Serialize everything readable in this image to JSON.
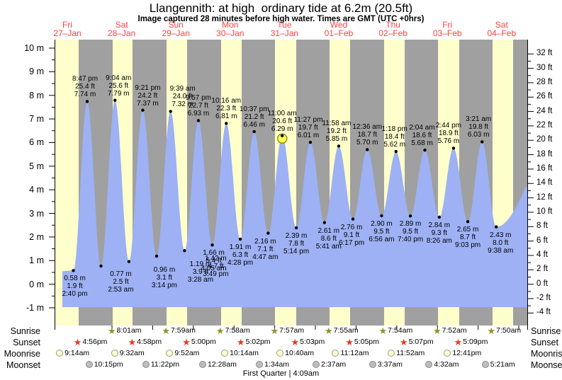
{
  "title": "Llangennith: at high  ordinary tide at 6.2m (20.5ft)",
  "subtitle": "Image captured 28 minutes before high water. Times are GMT (UTC +0hrs)",
  "days": [
    {
      "name": "Fri",
      "date": "27–Jan"
    },
    {
      "name": "Sat",
      "date": "28–Jan"
    },
    {
      "name": "Sun",
      "date": "29–Jan"
    },
    {
      "name": "Mon",
      "date": "30–Jan"
    },
    {
      "name": "Tue",
      "date": "31–Jan"
    },
    {
      "name": "Wed",
      "date": "01–Feb"
    },
    {
      "name": "Thu",
      "date": "02–Feb"
    },
    {
      "name": "Fri",
      "date": "03–Feb"
    },
    {
      "name": "Sat",
      "date": "04–Feb"
    }
  ],
  "chart_data": {
    "type": "area",
    "x_unit": "hours_from_Fri_27_Jan_00:00_GMT",
    "y_unit": "metres",
    "ylim_m": [
      -1,
      10
    ],
    "ylim_ft": [
      -4,
      32
    ],
    "yticks_m": [
      {
        "v": 10,
        "label": "10 m"
      },
      {
        "v": 9,
        "label": "9 m"
      },
      {
        "v": 8,
        "label": "8 m"
      },
      {
        "v": 7,
        "label": "7 m"
      },
      {
        "v": 6,
        "label": "6 m"
      },
      {
        "v": 5,
        "label": "5 m"
      },
      {
        "v": 4,
        "label": "4 m"
      },
      {
        "v": 3,
        "label": "3 m"
      },
      {
        "v": 2,
        "label": "2 m"
      },
      {
        "v": 1,
        "label": "1 m"
      },
      {
        "v": 0,
        "label": "0 m"
      },
      {
        "v": -1,
        "label": "-1 m"
      }
    ],
    "yticks_ft": [
      {
        "v": 32,
        "label": "32 ft"
      },
      {
        "v": 30,
        "label": "30 ft"
      },
      {
        "v": 28,
        "label": "28 ft"
      },
      {
        "v": 26,
        "label": "26 ft"
      },
      {
        "v": 24,
        "label": "24 ft"
      },
      {
        "v": 22,
        "label": "22 ft"
      },
      {
        "v": 20,
        "label": "20 ft"
      },
      {
        "v": 18,
        "label": "18 ft"
      },
      {
        "v": 16,
        "label": "16 ft"
      },
      {
        "v": 14,
        "label": "14 ft"
      },
      {
        "v": 12,
        "label": "12 ft"
      },
      {
        "v": 10,
        "label": "10 ft"
      },
      {
        "v": 8,
        "label": "8 ft"
      },
      {
        "v": 6,
        "label": "6 ft"
      },
      {
        "v": 4,
        "label": "4 ft"
      },
      {
        "v": 2,
        "label": "2 ft"
      },
      {
        "v": 0,
        "label": "0 ft"
      },
      {
        "v": -2,
        "label": "-2 ft"
      },
      {
        "v": -4,
        "label": "-4 ft"
      }
    ],
    "events": [
      {
        "kind": "low",
        "t": 14.67,
        "m": 0.58,
        "label_lines": [
          "0.58 m",
          "1.9 ft",
          "2:40 pm"
        ]
      },
      {
        "kind": "high",
        "t": 20.78,
        "m": 7.74,
        "label_lines": [
          "8:47 pm",
          "25.4 ft",
          "7.74 m"
        ]
      },
      {
        "kind": "low",
        "t": 26.88,
        "m": 0.77,
        "label_lines": [
          "0.77 m",
          "2.5 ft",
          "2:53 am"
        ]
      },
      {
        "kind": "high",
        "t": 33.07,
        "m": 7.79,
        "label_lines": [
          "9:04 am",
          "25.6 ft",
          "7.79 m"
        ]
      },
      {
        "kind": "low",
        "t": 39.23,
        "m": 0.96,
        "label_lines": [
          "0.96 m",
          "3.1 ft",
          "3:14 pm"
        ]
      },
      {
        "kind": "high",
        "t": 45.35,
        "m": 7.37,
        "label_lines": [
          "9:21 pm",
          "24.2 ft",
          "7.37 m"
        ]
      },
      {
        "kind": "low",
        "t": 51.47,
        "m": 1.19,
        "label_lines": [
          "1.19 m",
          "3.9 ft",
          "3:28 am"
        ]
      },
      {
        "kind": "high",
        "t": 57.65,
        "m": 7.32,
        "label_lines": [
          "9:39 am",
          "24.0 ft",
          "7.32 m"
        ]
      },
      {
        "kind": "low",
        "t": 63.82,
        "m": 1.42,
        "label_lines": [
          "1.42 m",
          "4.7 ft",
          "3:49 pm"
        ]
      },
      {
        "kind": "high",
        "t": 69.95,
        "m": 6.93,
        "label_lines": [
          "9:57 pm",
          "22.7 ft",
          "6.93 m"
        ]
      },
      {
        "kind": "low",
        "t": 76.08,
        "m": 1.66,
        "label_lines": [
          "1.66 m",
          "5.4 ft",
          "4:05 am"
        ]
      },
      {
        "kind": "high",
        "t": 82.27,
        "m": 6.81,
        "label_lines": [
          "10:16 am",
          "22.3 ft",
          "6.81 m"
        ]
      },
      {
        "kind": "low",
        "t": 88.47,
        "m": 1.91,
        "label_lines": [
          "1.91 m",
          "6.3 ft",
          "4:28 pm"
        ]
      },
      {
        "kind": "high",
        "t": 94.62,
        "m": 6.46,
        "label_lines": [
          "10:37 pm",
          "21.2 ft",
          "6.46 m"
        ]
      },
      {
        "kind": "low",
        "t": 100.78,
        "m": 2.16,
        "label_lines": [
          "2.16 m",
          "7.1 ft",
          "4:47 am"
        ]
      },
      {
        "kind": "high",
        "t": 107.0,
        "m": 6.29,
        "current": true,
        "label_lines": [
          "11:00 am",
          "20.6 ft",
          "6.29 m"
        ]
      },
      {
        "kind": "low",
        "t": 113.23,
        "m": 2.39,
        "label_lines": [
          "2.39 m",
          "7.8 ft",
          "5:14 pm"
        ]
      },
      {
        "kind": "high",
        "t": 119.45,
        "m": 6.01,
        "label_lines": [
          "11:27 pm",
          "19.7 ft",
          "6.01 m"
        ]
      },
      {
        "kind": "low",
        "t": 125.68,
        "m": 2.61,
        "label_lines": [
          "2.61 m",
          "8.6 ft",
          "5:41 am"
        ]
      },
      {
        "kind": "high",
        "t": 131.97,
        "m": 5.85,
        "label_lines": [
          "11:58 am",
          "19.2 ft",
          "5.85 m"
        ]
      },
      {
        "kind": "low",
        "t": 138.28,
        "m": 2.76,
        "label_lines": [
          "2.76 m",
          "9.1 ft",
          "6:17 pm"
        ]
      },
      {
        "kind": "high",
        "t": 144.6,
        "m": 5.7,
        "label_lines": [
          "12:36 am",
          "18.7 ft",
          "5.70 m"
        ]
      },
      {
        "kind": "low",
        "t": 150.93,
        "m": 2.9,
        "label_lines": [
          "2.90 m",
          "9.5 ft",
          "6:56 am"
        ]
      },
      {
        "kind": "high",
        "t": 157.3,
        "m": 5.62,
        "label_lines": [
          "1:18 pm",
          "18.4 ft",
          "5.62 m"
        ]
      },
      {
        "kind": "low",
        "t": 163.67,
        "m": 2.89,
        "label_lines": [
          "2.89 m",
          "9.5 ft",
          "7:40 pm"
        ]
      },
      {
        "kind": "high",
        "t": 170.07,
        "m": 5.68,
        "label_lines": [
          "2:04 am",
          "18.6 ft",
          "5.68 m"
        ]
      },
      {
        "kind": "low",
        "t": 176.43,
        "m": 2.84,
        "label_lines": [
          "2.84 m",
          "9.3 ft",
          "8:26 am"
        ]
      },
      {
        "kind": "high",
        "t": 182.73,
        "m": 5.76,
        "label_lines": [
          "2:44 pm",
          "18.9 ft",
          "5.76 m"
        ]
      },
      {
        "kind": "low",
        "t": 189.05,
        "m": 2.65,
        "label_lines": [
          "2.65 m",
          "8.7 ft",
          "9:03 pm"
        ]
      },
      {
        "kind": "high",
        "t": 195.35,
        "m": 6.03,
        "label_lines": [
          "3:21 am",
          "19.8 ft",
          "6.03 m"
        ]
      },
      {
        "kind": "low",
        "t": 201.63,
        "m": 2.43,
        "label_lines": [
          "2.43 m",
          "8.0 ft",
          "9:38 am"
        ]
      }
    ],
    "current_time_marker_on": "11:00 am"
  },
  "astro": {
    "rows": [
      {
        "id": "sunrise",
        "label": "Sunrise",
        "icon": "sunrise-star",
        "entries": [
          {
            "day": 1,
            "time": "8:01am"
          },
          {
            "day": 2,
            "time": "7:59am"
          },
          {
            "day": 3,
            "time": "7:58am"
          },
          {
            "day": 4,
            "time": "7:57am"
          },
          {
            "day": 5,
            "time": "7:55am"
          },
          {
            "day": 6,
            "time": "7:54am"
          },
          {
            "day": 7,
            "time": "7:52am"
          },
          {
            "day": 8,
            "time": "7:50am"
          }
        ]
      },
      {
        "id": "sunset",
        "label": "Sunset",
        "icon": "sunset-star",
        "entries": [
          {
            "day": 0,
            "time": "4:56pm"
          },
          {
            "day": 1,
            "time": "4:58pm"
          },
          {
            "day": 2,
            "time": "5:00pm"
          },
          {
            "day": 3,
            "time": "5:02pm"
          },
          {
            "day": 4,
            "time": "5:03pm"
          },
          {
            "day": 5,
            "time": "5:05pm"
          },
          {
            "day": 6,
            "time": "5:07pm"
          },
          {
            "day": 7,
            "time": "5:09pm"
          }
        ]
      },
      {
        "id": "moonrise",
        "label": "Moonrise",
        "icon": "moonrise-circle",
        "entries": [
          {
            "day": 0,
            "time": "9:14am"
          },
          {
            "day": 1,
            "time": "9:32am"
          },
          {
            "day": 2,
            "time": "9:52am"
          },
          {
            "day": 3,
            "time": "10:14am"
          },
          {
            "day": 4,
            "time": "10:40am"
          },
          {
            "day": 5,
            "time": "11:12am"
          },
          {
            "day": 6,
            "time": "11:52am"
          },
          {
            "day": 7,
            "time": "12:41pm"
          }
        ]
      },
      {
        "id": "moonset",
        "label": "Moonset",
        "icon": "moonset-circle",
        "entries": [
          {
            "day": 0,
            "time": "10:15pm"
          },
          {
            "day": 1,
            "time": "11:22pm"
          },
          {
            "day": 3,
            "time": "12:28am"
          },
          {
            "day": 4,
            "time": "1:34am"
          },
          {
            "day": 5,
            "time": "2:37am"
          },
          {
            "day": 6,
            "time": "3:37am"
          },
          {
            "day": 7,
            "time": "4:32am"
          },
          {
            "day": 8,
            "time": "5:21am"
          }
        ]
      }
    ],
    "footer": "First Quarter | 4:09am"
  },
  "colors": {
    "day_band": "#ffffcc",
    "night_band": "#a0a0a0",
    "tide_fill": "#9db1f4",
    "date_red": "#ff4040",
    "marker_fill": "#ffff55",
    "marker_stroke": "#8a8a00",
    "sunrise_star": "#8f8f2f",
    "sunset_star": "#e8391c",
    "moonrise_fill": "#ffffcc",
    "moonrise_stroke": "#999999",
    "moonset_fill": "#bdbdbd",
    "moonset_stroke": "#8a8a8a"
  }
}
